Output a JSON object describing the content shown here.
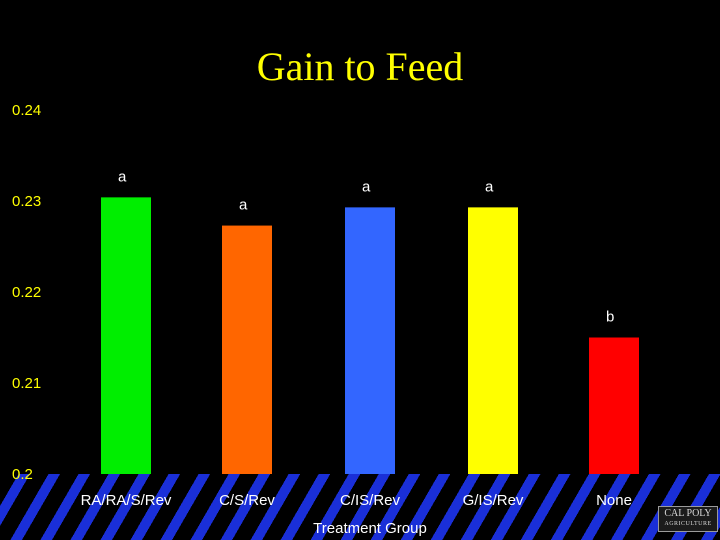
{
  "colors": {
    "background": "#000000",
    "title": "#ffff00",
    "stripe": "#1a2fd8"
  },
  "chart_data": {
    "type": "bar",
    "title": "Gain to Feed",
    "xlabel": "Treatment Group",
    "ylabel": "",
    "ylim": [
      0.2,
      0.24
    ],
    "yticks": [
      "0.2",
      "0.21",
      "0.22",
      "0.23",
      "0.24"
    ],
    "categories": [
      "RA/RA/S/Rev",
      "C/S/Rev",
      "C/IS/Rev",
      "G/IS/Rev",
      "None"
    ],
    "values": [
      0.2304,
      0.2273,
      0.2293,
      0.2293,
      0.215
    ],
    "labels": [
      "a",
      "a",
      "a",
      "a",
      "b"
    ],
    "colors": [
      "#00ee00",
      "#ff6600",
      "#3366ff",
      "#ffff00",
      "#ff0000"
    ],
    "grid": false,
    "legend": "none"
  },
  "logo": {
    "line1": "CAL POLY",
    "line2": "AGRICULTURE"
  }
}
